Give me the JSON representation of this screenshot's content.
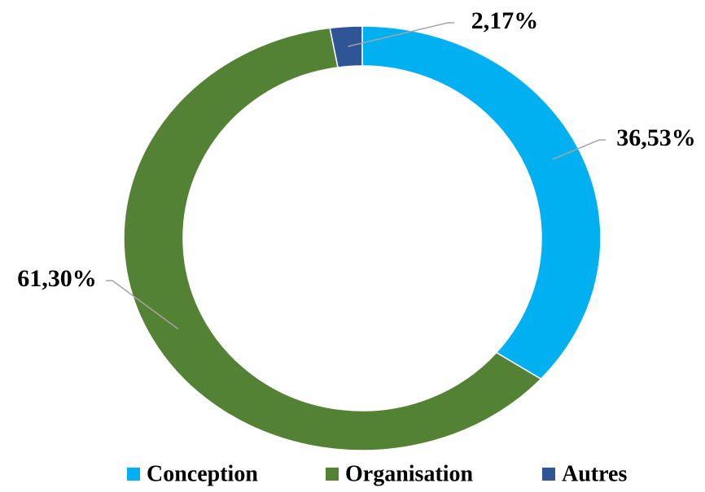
{
  "chart_data": {
    "type": "donut",
    "categories": [
      "Conception",
      "Organisation",
      "Autres"
    ],
    "values": [
      36.53,
      61.3,
      2.17
    ],
    "value_labels": [
      "36,53%",
      "61,30%",
      "2,17%"
    ],
    "colors": [
      "#00b0f0",
      "#548235",
      "#2f5597"
    ],
    "legend": "bottom"
  }
}
